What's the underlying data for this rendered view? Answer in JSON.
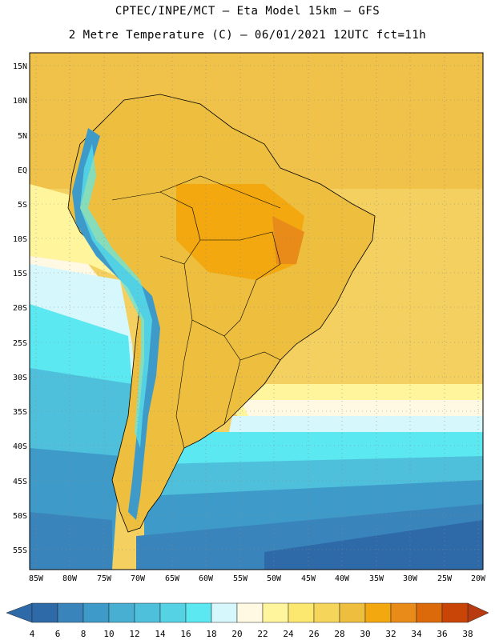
{
  "header": {
    "line1": "CPTEC/INPE/MCT –  Eta Model 15km – GFS",
    "line2": "2 Metre Temperature (C) – 06/01/2021 12UTC fct=11h"
  },
  "map": {
    "lat_labels": [
      "15N",
      "10N",
      "5N",
      "EQ",
      "5S",
      "10S",
      "15S",
      "20S",
      "25S",
      "30S",
      "35S",
      "40S",
      "45S",
      "50S",
      "55S"
    ],
    "lon_labels": [
      "85W",
      "80W",
      "75W",
      "70W",
      "65W",
      "60W",
      "55W",
      "50W",
      "45W",
      "40W",
      "35W",
      "30W",
      "25W",
      "20W"
    ]
  },
  "colorbar": {
    "labels": [
      "4",
      "6",
      "8",
      "10",
      "12",
      "14",
      "16",
      "18",
      "20",
      "22",
      "24",
      "26",
      "28",
      "30",
      "32",
      "34",
      "36",
      "38"
    ],
    "low_color": "#2f6aa8",
    "high_color": "#b83a10",
    "colors": [
      "#2f6aa8",
      "#3a84bc",
      "#3e9bc9",
      "#49afd2",
      "#4fc0dc",
      "#55d2e4",
      "#5be8f0",
      "#d6f7fc",
      "#fff9e3",
      "#fff59c",
      "#fde86f",
      "#f6d65a",
      "#eebf3f",
      "#f3a80f",
      "#e98b19",
      "#dc6a0a",
      "#c94507"
    ]
  }
}
